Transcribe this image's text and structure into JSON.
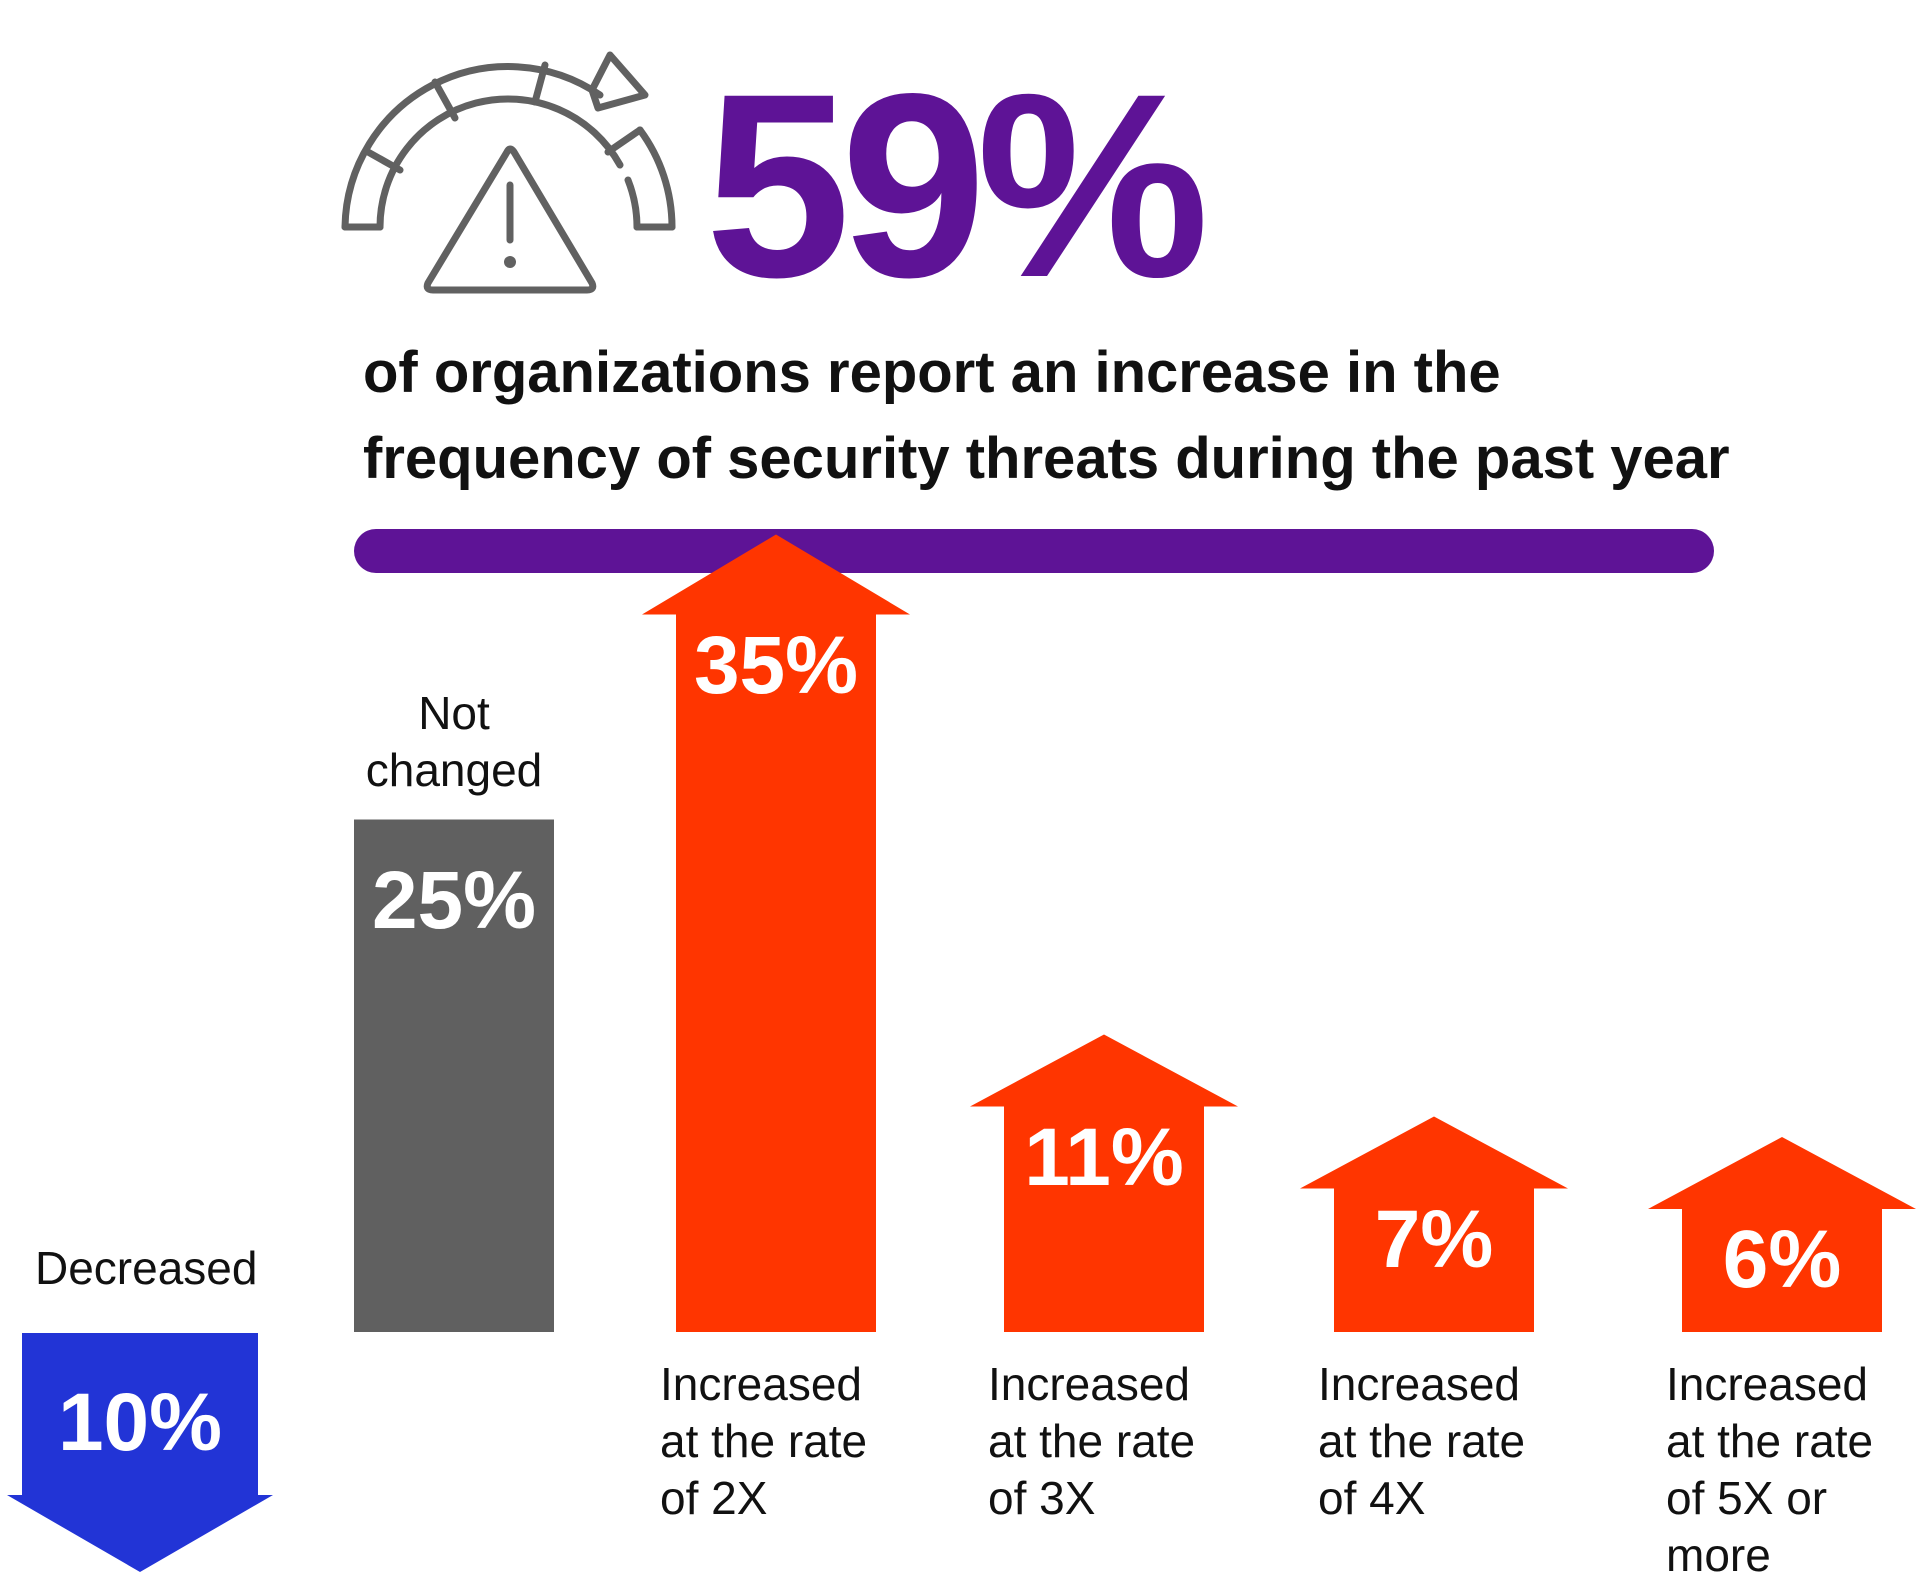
{
  "headline": {
    "value": "59%",
    "text_line1": "of organizations report an increase in the",
    "text_line2": "frequency of security threats during the past year"
  },
  "icon": "gauge-warning-icon",
  "colors": {
    "headline": "#5e1396",
    "decreased": "#2234d6",
    "not_changed": "#606060",
    "increased": "#ff3500",
    "icon_stroke": "#616161"
  },
  "chart_data": {
    "type": "bar",
    "categories": [
      "Decreased",
      "Not changed",
      "Increased at the rate of 2X",
      "Increased at the rate of 3X",
      "Increased at the rate of 4X",
      "Increased at the rate of 5X or more"
    ],
    "values": [
      10,
      25,
      35,
      11,
      7,
      6
    ],
    "value_labels": [
      "10%",
      "25%",
      "35%",
      "11%",
      "7%",
      "6%"
    ],
    "label_lines": [
      [
        "Decreased"
      ],
      [
        "Not",
        "changed"
      ],
      [
        "Increased",
        "at the rate",
        "of 2X"
      ],
      [
        "Increased",
        "at the rate",
        "of 3X"
      ],
      [
        "Increased",
        "at the rate",
        "of 4X"
      ],
      [
        "Increased",
        "at the rate",
        "of 5X or",
        "more"
      ]
    ],
    "shapes": [
      "arrow-down",
      "bar",
      "arrow-up",
      "arrow-up",
      "arrow-up",
      "arrow-up"
    ],
    "grid": false
  }
}
